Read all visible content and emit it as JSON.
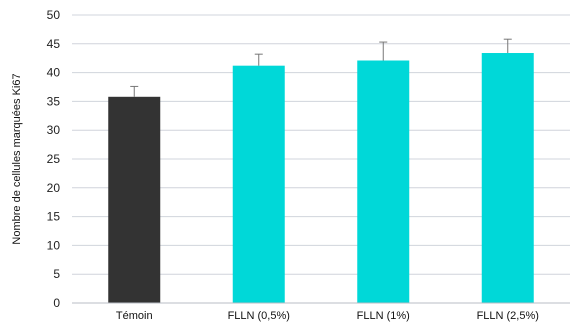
{
  "chart_data": {
    "type": "bar",
    "title": "",
    "xlabel": "",
    "ylabel": "Nombre de cellules marquées Ki67",
    "ylim": [
      0,
      50
    ],
    "yticks": [
      0,
      5,
      10,
      15,
      20,
      25,
      30,
      35,
      40,
      45,
      50
    ],
    "grid": true,
    "categories": [
      "Témoin",
      "FLLN (0,5%)",
      "FLLN (1%)",
      "FLLN (2,5%)"
    ],
    "values": [
      35.8,
      41.2,
      42.1,
      43.4
    ],
    "errors": [
      1.8,
      2.0,
      3.2,
      2.4
    ],
    "colors": [
      "#333333",
      "#00d8d8",
      "#00d8d8",
      "#00d8d8"
    ]
  }
}
